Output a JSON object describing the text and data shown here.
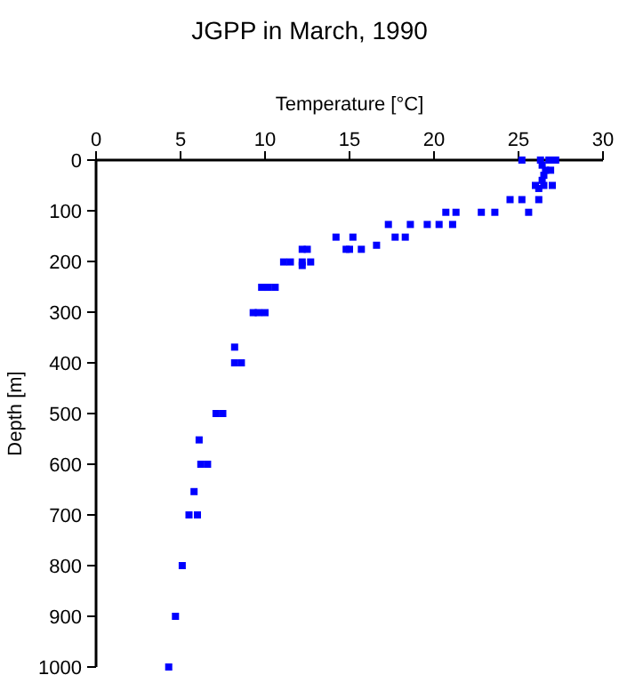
{
  "chart_data": {
    "type": "scatter",
    "title": "JGPP in March, 1990",
    "xlabel": "Temperature [°C]",
    "ylabel": "Depth [m]",
    "x": [
      25.2,
      26.3,
      26.8,
      27.2,
      26.4,
      26.6,
      26.5,
      26.9,
      26.4,
      26.0,
      26.5,
      27.0,
      26.2,
      24.5,
      25.2,
      26.2,
      25.6,
      22.8,
      23.6,
      20.7,
      21.3,
      17.3,
      18.6,
      19.6,
      20.3,
      21.1,
      14.2,
      15.2,
      17.7,
      18.3,
      16.6,
      12.2,
      12.5,
      14.8,
      15.0,
      15.7,
      11.1,
      11.5,
      12.2,
      12.7,
      12.2,
      9.8,
      10.2,
      10.6,
      9.3,
      9.6,
      10.0,
      8.2,
      8.2,
      8.6,
      7.1,
      7.5,
      6.1,
      6.2,
      6.6,
      5.8,
      5.5,
      6.0,
      5.1,
      4.7,
      4.3
    ],
    "series": [
      {
        "color": "#0000ff",
        "values": [
          0,
          0,
          0,
          0,
          10,
          20,
          30,
          20,
          40,
          50,
          50,
          50,
          56,
          78,
          78,
          78,
          103,
          103,
          103,
          103,
          103,
          127,
          127,
          127,
          127,
          127,
          152,
          152,
          152,
          152,
          168,
          176,
          176,
          176,
          176,
          176,
          201,
          201,
          201,
          201,
          208,
          251,
          251,
          251,
          301,
          301,
          301,
          369,
          400,
          400,
          500,
          500,
          552,
          600,
          600,
          654,
          700,
          700,
          800,
          900,
          1000
        ]
      }
    ],
    "xlim": [
      0,
      30
    ],
    "xticks": [
      0,
      5,
      10,
      15,
      20,
      25,
      30
    ],
    "ylim": [
      1000,
      0
    ],
    "yticks": [
      0,
      100,
      200,
      300,
      400,
      500,
      600,
      700,
      800,
      900,
      1000
    ],
    "marker": "square",
    "grid": false
  }
}
